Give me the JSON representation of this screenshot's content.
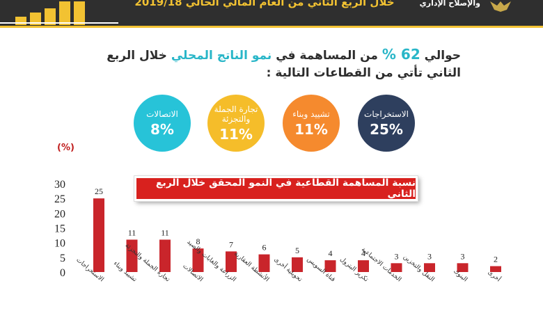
{
  "header": {
    "title": "خلال الربع الثاني من العام المالي الحالي 2019/18",
    "ministry": "والإصلاح الإداري",
    "colors": {
      "bar": "#2f2f2f",
      "accent": "#f2c232"
    }
  },
  "headline": {
    "prefix": "حوالي",
    "percent": "62 %",
    "middle": "من المساهمة في",
    "highlight": "نمو الناتج المحلي",
    "suffix": "خلال الربع الثاني تأتي من القطاعات التالية :"
  },
  "circles": [
    {
      "label": "الاستخراجات",
      "value": "25%",
      "color": "#2e3f5e"
    },
    {
      "label": "تشييد وبناء",
      "value": "11%",
      "color": "#f58a2e"
    },
    {
      "label": "تجارة الجملة والتجزئة",
      "value": "11%",
      "color": "#f5bd2a"
    },
    {
      "label": "الاتصالات",
      "value": "8%",
      "color": "#27c3d8"
    }
  ],
  "chart_data": {
    "type": "bar",
    "title": "نسبة المساهمة القطاعية في النمو المحقق خلال الربع الثاني",
    "unit_label": "(%)",
    "categories": [
      "الاستخراجات",
      "تشييد وبناء",
      "تجارة الجملة والتجزئة",
      "الاتصالات",
      "الزراعة والغابات والصيد",
      "الأنشطة العقارية",
      "تحويلية أخرى",
      "قناة السويس",
      "تكرير البترول",
      "الخدمات الاجتماعية",
      "النقل والتخزين",
      "البنوك",
      "أخرى"
    ],
    "values": [
      25,
      11,
      11,
      8,
      7,
      6,
      5,
      4,
      4,
      3,
      3,
      3,
      2
    ],
    "ylim": [
      0,
      30
    ],
    "yticks": [
      0,
      5,
      10,
      15,
      20,
      25,
      30
    ],
    "color": "#c9252b",
    "grid": false,
    "legend": "none"
  }
}
